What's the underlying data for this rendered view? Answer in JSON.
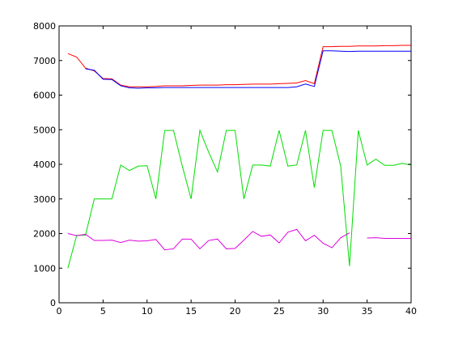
{
  "chart_data": {
    "type": "line",
    "title": "",
    "xlabel": "",
    "ylabel": "",
    "xlim": [
      0,
      40
    ],
    "ylim": [
      0,
      8000
    ],
    "x_ticks": [
      0,
      5,
      10,
      15,
      20,
      25,
      30,
      35,
      40
    ],
    "y_ticks": [
      0,
      1000,
      2000,
      3000,
      4000,
      5000,
      6000,
      7000,
      8000
    ],
    "grid": false,
    "legend": "none",
    "x": [
      1,
      2,
      3,
      4,
      5,
      6,
      7,
      8,
      9,
      10,
      11,
      12,
      13,
      14,
      15,
      16,
      17,
      18,
      19,
      20,
      21,
      22,
      23,
      24,
      25,
      26,
      27,
      28,
      29,
      30,
      31,
      32,
      33,
      34,
      35,
      36,
      37,
      38,
      39,
      40
    ],
    "series": [
      {
        "color": "#ff0000",
        "values": [
          7200,
          7100,
          6780,
          6700,
          6480,
          6470,
          6290,
          6240,
          6240,
          6240,
          6250,
          6270,
          6270,
          6270,
          6280,
          6290,
          6290,
          6290,
          6300,
          6300,
          6310,
          6320,
          6320,
          6320,
          6330,
          6340,
          6350,
          6420,
          6330,
          7400,
          7400,
          7410,
          7410,
          7420,
          7420,
          7420,
          7430,
          7430,
          7440,
          7440
        ]
      },
      {
        "color": "#0000ff",
        "values": [
          null,
          null,
          6760,
          6720,
          6460,
          6450,
          6270,
          6210,
          6200,
          6210,
          6210,
          6220,
          6220,
          6220,
          6220,
          6220,
          6220,
          6220,
          6220,
          6220,
          6220,
          6220,
          6220,
          6220,
          6220,
          6220,
          6240,
          6320,
          6250,
          7280,
          7280,
          7270,
          7260,
          7270,
          7270,
          7270,
          7270,
          7270,
          7270,
          7270
        ]
      },
      {
        "color": "#00dd00",
        "values": [
          1000,
          1950,
          1950,
          3000,
          3000,
          3000,
          3980,
          3820,
          3950,
          3960,
          3000,
          4980,
          4980,
          3950,
          3000,
          4980,
          4350,
          3780,
          4980,
          4980,
          3000,
          3980,
          3980,
          3950,
          4980,
          3950,
          3980,
          4980,
          3330,
          4980,
          4980,
          3950,
          1060,
          4980,
          3980,
          4150,
          3970,
          3970,
          4030,
          3980
        ]
      },
      {
        "color": "#dd00dd",
        "values": [
          2000,
          1940,
          1980,
          1800,
          1800,
          1810,
          1740,
          1810,
          1780,
          1790,
          1830,
          1530,
          1560,
          1840,
          1840,
          1560,
          1800,
          1840,
          1560,
          1570,
          1810,
          2060,
          1920,
          1960,
          1730,
          2040,
          2120,
          1790,
          1950,
          1720,
          1590,
          1880,
          2020,
          null,
          1870,
          1880,
          1860,
          1860,
          1860,
          1860
        ]
      }
    ]
  }
}
